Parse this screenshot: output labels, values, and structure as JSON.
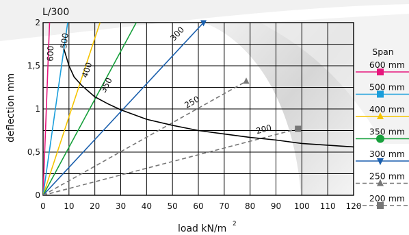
{
  "chart_data": {
    "type": "line",
    "title": "",
    "xlabel": "load kN/m",
    "xlabel_superscript": "2",
    "ylabel": "deflection mm",
    "limit_label": "L/300",
    "xlim": [
      0,
      120
    ],
    "ylim": [
      0,
      2
    ],
    "grid": true,
    "x_ticks": [
      0,
      10,
      20,
      30,
      40,
      50,
      60,
      70,
      80,
      90,
      100,
      110,
      120
    ],
    "x_tick_labels": [
      "0",
      "10",
      "20",
      "30",
      "40",
      "50",
      "60",
      "70",
      "80",
      "90",
      "100",
      "110",
      "120"
    ],
    "y_ticks": [
      0,
      0.5,
      1,
      1.5,
      2
    ],
    "y_tick_labels": [
      "0",
      "0,5",
      "1",
      "1,5",
      "2"
    ],
    "legend_title": "Span",
    "legend_position": "right",
    "series": [
      {
        "name": "600 mm",
        "label": "600",
        "color": "#e6177d",
        "style": "solid",
        "marker": "square",
        "x": [
          0,
          2.5
        ],
        "y": [
          0,
          2
        ]
      },
      {
        "name": "500 mm",
        "label": "500",
        "color": "#1a9edb",
        "style": "solid",
        "marker": "square",
        "x": [
          0,
          9.5
        ],
        "y": [
          0,
          2
        ]
      },
      {
        "name": "400 mm",
        "label": "400",
        "color": "#f5c400",
        "style": "solid",
        "marker": "triangle",
        "x": [
          0,
          22
        ],
        "y": [
          0,
          2
        ]
      },
      {
        "name": "350 mm",
        "label": "350",
        "color": "#17a03c",
        "style": "solid",
        "marker": "circle",
        "x": [
          0,
          36
        ],
        "y": [
          0,
          2
        ]
      },
      {
        "name": "300 mm",
        "label": "300",
        "color": "#1a5fad",
        "style": "solid",
        "marker": "triangle-down",
        "x": [
          0,
          62
        ],
        "y": [
          0,
          2
        ]
      },
      {
        "name": "250 mm",
        "label": "250",
        "color": "#777777",
        "style": "dashed",
        "marker": "triangle",
        "x": [
          0,
          78.5
        ],
        "y": [
          0,
          1.32
        ]
      },
      {
        "name": "200 mm",
        "label": "200",
        "color": "#777777",
        "style": "dashed",
        "marker": "square",
        "x": [
          0,
          98.5
        ],
        "y": [
          0,
          0.77
        ]
      }
    ],
    "curve": {
      "color": "#000000",
      "x": [
        8,
        10,
        12,
        15,
        20,
        25,
        30,
        40,
        50,
        60,
        70,
        80,
        90,
        100,
        110,
        120
      ],
      "y": [
        1.7,
        1.5,
        1.37,
        1.27,
        1.14,
        1.06,
        0.99,
        0.88,
        0.81,
        0.75,
        0.71,
        0.67,
        0.64,
        0.6,
        0.58,
        0.56
      ]
    }
  }
}
